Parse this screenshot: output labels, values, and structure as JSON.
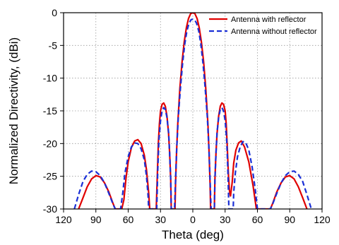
{
  "chart_data": {
    "type": "line",
    "title": "",
    "xlabel": "Theta (deg)",
    "ylabel": "Normalized Directivity, (dBi)",
    "xlim": [
      -120,
      120
    ],
    "ylim": [
      -30,
      0
    ],
    "x_ticks": [
      -120,
      -90,
      -60,
      -30,
      0,
      30,
      60,
      90,
      120
    ],
    "x_tick_labels": [
      "120",
      "90",
      "60",
      "30",
      "0",
      "30",
      "60",
      "90",
      "120"
    ],
    "y_ticks": [
      0,
      -5,
      -10,
      -15,
      -20,
      -25,
      -30
    ],
    "y_tick_labels": [
      "0",
      "-5",
      "-10",
      "-15",
      "-20",
      "-25",
      "-30"
    ],
    "grid": true,
    "legend_position": "top-right",
    "series": [
      {
        "name": "Antenna with reflector",
        "color": "#e00000",
        "style": "solid",
        "points": [
          [
            -106,
            -30
          ],
          [
            -102,
            -28.3
          ],
          [
            -98,
            -26.6
          ],
          [
            -94,
            -25.4
          ],
          [
            -90,
            -24.9
          ],
          [
            -86,
            -25.1
          ],
          [
            -82,
            -26.0
          ],
          [
            -78,
            -27.4
          ],
          [
            -74,
            -29.2
          ],
          [
            -72,
            -30
          ],
          [
            -66,
            -30
          ],
          [
            -64,
            -28.6
          ],
          [
            -62,
            -25.3
          ],
          [
            -60,
            -22.8
          ],
          [
            -57,
            -20.6
          ],
          [
            -54,
            -19.6
          ],
          [
            -51,
            -19.4
          ],
          [
            -48,
            -20.0
          ],
          [
            -45,
            -21.8
          ],
          [
            -43,
            -24.0
          ],
          [
            -41,
            -27.5
          ],
          [
            -40,
            -30
          ],
          [
            -34,
            -30
          ],
          [
            -33,
            -25.0
          ],
          [
            -32,
            -20.0
          ],
          [
            -31,
            -17.0
          ],
          [
            -30,
            -15.0
          ],
          [
            -28.5,
            -14.0
          ],
          [
            -27,
            -13.8
          ],
          [
            -25.5,
            -14.3
          ],
          [
            -24,
            -15.8
          ],
          [
            -22.5,
            -18.5
          ],
          [
            -21.5,
            -21.5
          ],
          [
            -20.5,
            -25.5
          ],
          [
            -20,
            -30
          ],
          [
            -16.5,
            -30
          ],
          [
            -16,
            -26.0
          ],
          [
            -15,
            -21.0
          ],
          [
            -14,
            -17.0
          ],
          [
            -12,
            -11.5
          ],
          [
            -10,
            -7.5
          ],
          [
            -8,
            -4.5
          ],
          [
            -6,
            -2.3
          ],
          [
            -4,
            -0.9
          ],
          [
            -2,
            -0.15
          ],
          [
            0,
            0
          ],
          [
            2,
            -0.15
          ],
          [
            4,
            -0.9
          ],
          [
            6,
            -2.3
          ],
          [
            8,
            -4.5
          ],
          [
            10,
            -7.5
          ],
          [
            12,
            -11.5
          ],
          [
            14,
            -17.0
          ],
          [
            15,
            -21.0
          ],
          [
            16,
            -26.0
          ],
          [
            16.5,
            -30
          ],
          [
            20,
            -30
          ],
          [
            20.5,
            -25.5
          ],
          [
            21.5,
            -21.5
          ],
          [
            22.5,
            -18.5
          ],
          [
            24,
            -15.8
          ],
          [
            25.5,
            -14.3
          ],
          [
            27,
            -13.8
          ],
          [
            28.5,
            -14.0
          ],
          [
            30,
            -15.0
          ],
          [
            31,
            -17.0
          ],
          [
            32,
            -20.5
          ],
          [
            33,
            -24.5
          ],
          [
            34,
            -27.2
          ],
          [
            35,
            -28.0
          ],
          [
            36.5,
            -26.0
          ],
          [
            38,
            -23.0
          ],
          [
            40,
            -21.0
          ],
          [
            42.5,
            -19.9
          ],
          [
            45,
            -19.6
          ],
          [
            48,
            -20.5
          ],
          [
            52,
            -22.8
          ],
          [
            56,
            -26.5
          ],
          [
            59,
            -30
          ],
          [
            72,
            -30
          ],
          [
            74,
            -29.2
          ],
          [
            78,
            -27.4
          ],
          [
            82,
            -26.0
          ],
          [
            86,
            -25.1
          ],
          [
            90,
            -24.9
          ],
          [
            94,
            -25.4
          ],
          [
            98,
            -26.6
          ],
          [
            102,
            -28.3
          ],
          [
            106,
            -30
          ]
        ]
      },
      {
        "name": "Antenna without reflector",
        "color": "#1a2fd6",
        "style": "dashed",
        "points": [
          [
            -110,
            -30
          ],
          [
            -106,
            -27.8
          ],
          [
            -102,
            -25.8
          ],
          [
            -98,
            -24.7
          ],
          [
            -94,
            -24.2
          ],
          [
            -90,
            -24.3
          ],
          [
            -86,
            -24.9
          ],
          [
            -82,
            -26.0
          ],
          [
            -78,
            -27.6
          ],
          [
            -74,
            -29.3
          ],
          [
            -72,
            -30
          ],
          [
            -67,
            -30
          ],
          [
            -65,
            -27.5
          ],
          [
            -63,
            -24.5
          ],
          [
            -60,
            -22.0
          ],
          [
            -57,
            -20.5
          ],
          [
            -54,
            -19.9
          ],
          [
            -51,
            -20.0
          ],
          [
            -48,
            -20.8
          ],
          [
            -45,
            -22.5
          ],
          [
            -43,
            -25.0
          ],
          [
            -41.5,
            -28.0
          ],
          [
            -41,
            -30
          ],
          [
            -33.5,
            -30
          ],
          [
            -32.5,
            -24.0
          ],
          [
            -31.5,
            -19.5
          ],
          [
            -30,
            -16.5
          ],
          [
            -28.5,
            -15.0
          ],
          [
            -27,
            -14.5
          ],
          [
            -25.5,
            -14.8
          ],
          [
            -24,
            -16.0
          ],
          [
            -22.5,
            -18.3
          ],
          [
            -21.5,
            -21.5
          ],
          [
            -20.5,
            -25.5
          ],
          [
            -20,
            -30
          ],
          [
            -17,
            -30
          ],
          [
            -16,
            -25.5
          ],
          [
            -15,
            -21.0
          ],
          [
            -13.5,
            -16.0
          ],
          [
            -11.5,
            -11.5
          ],
          [
            -9.5,
            -7.8
          ],
          [
            -7.5,
            -4.8
          ],
          [
            -5.5,
            -2.8
          ],
          [
            -3.5,
            -1.6
          ],
          [
            -1.5,
            -1.05
          ],
          [
            0,
            -1.0
          ],
          [
            1.5,
            -1.05
          ],
          [
            3.5,
            -1.6
          ],
          [
            5.5,
            -2.8
          ],
          [
            7.5,
            -4.8
          ],
          [
            9.5,
            -7.8
          ],
          [
            11.5,
            -11.5
          ],
          [
            13.5,
            -16.0
          ],
          [
            15,
            -21.0
          ],
          [
            16,
            -25.5
          ],
          [
            17,
            -30
          ],
          [
            20,
            -30
          ],
          [
            20.5,
            -25.5
          ],
          [
            21.5,
            -21.5
          ],
          [
            22.5,
            -18.3
          ],
          [
            24,
            -16.0
          ],
          [
            25.5,
            -14.8
          ],
          [
            27,
            -14.5
          ],
          [
            28.5,
            -15.0
          ],
          [
            30,
            -16.5
          ],
          [
            31.5,
            -19.5
          ],
          [
            32.5,
            -24.0
          ],
          [
            33.5,
            -30
          ],
          [
            37.5,
            -30
          ],
          [
            38,
            -27.5
          ],
          [
            39.5,
            -24.5
          ],
          [
            41.5,
            -22.0
          ],
          [
            44,
            -20.5
          ],
          [
            46.5,
            -19.7
          ],
          [
            49,
            -19.8
          ],
          [
            52,
            -21.0
          ],
          [
            55,
            -23.5
          ],
          [
            58,
            -27.0
          ],
          [
            60,
            -30
          ],
          [
            72,
            -30
          ],
          [
            74,
            -29.3
          ],
          [
            78,
            -27.6
          ],
          [
            82,
            -26.0
          ],
          [
            86,
            -24.9
          ],
          [
            90,
            -24.3
          ],
          [
            94,
            -24.2
          ],
          [
            98,
            -24.7
          ],
          [
            102,
            -25.8
          ],
          [
            106,
            -27.8
          ],
          [
            110,
            -30
          ]
        ]
      }
    ]
  }
}
